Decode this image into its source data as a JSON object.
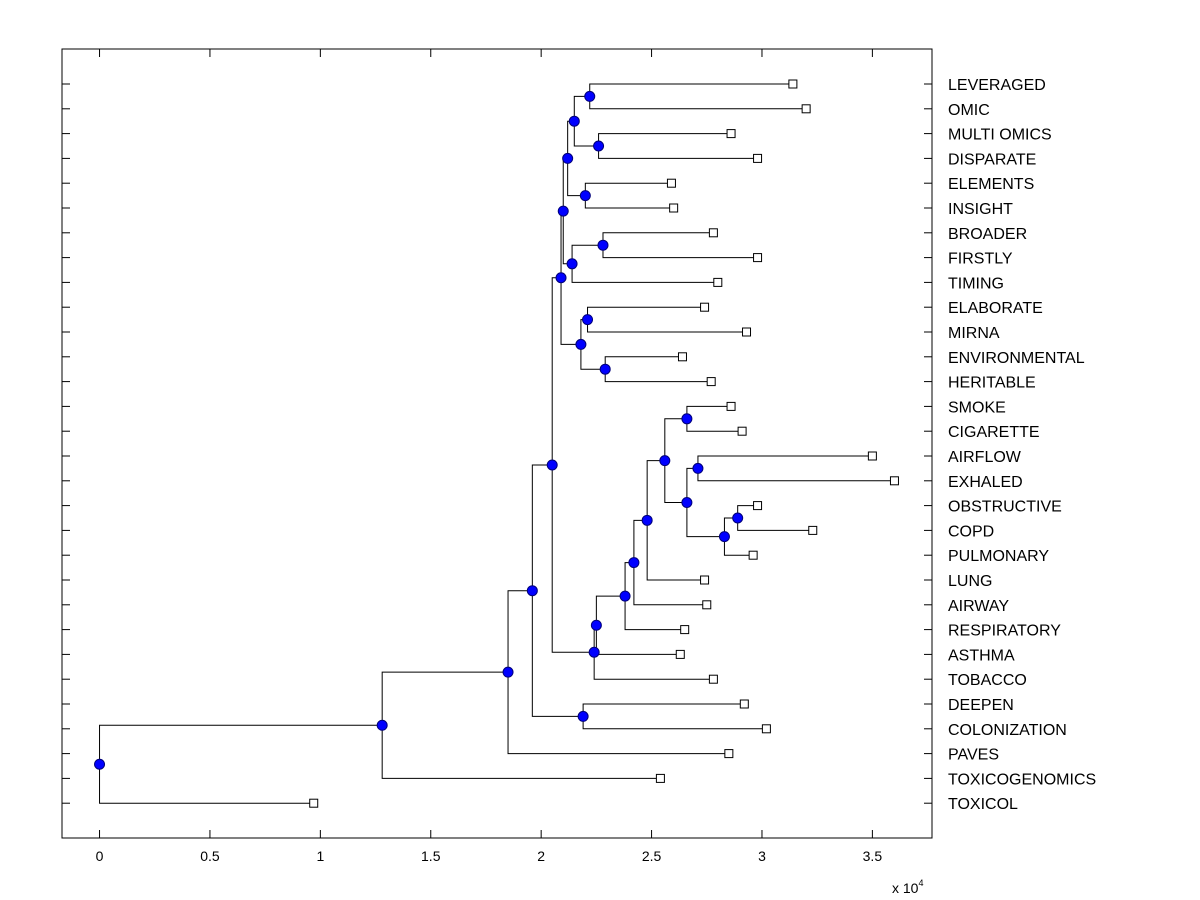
{
  "chart_data": {
    "type": "dendrogram",
    "title": "",
    "xlabel": "",
    "ylabel": "",
    "x_exponent_base": "x 10",
    "x_exponent_power": "4",
    "xlim": [
      -0.17,
      3.77
    ],
    "xticks": [
      0,
      0.5,
      1,
      1.5,
      2,
      2.5,
      3,
      3.5
    ],
    "xtick_labels": [
      "0",
      "0.5",
      "1",
      "1.5",
      "2",
      "2.5",
      "3",
      "3.5"
    ],
    "leaves": [
      {
        "label": "LEVERAGED",
        "x": 3.14
      },
      {
        "label": "OMIC",
        "x": 3.2
      },
      {
        "label": "MULTI OMICS",
        "x": 2.86
      },
      {
        "label": "DISPARATE",
        "x": 2.98
      },
      {
        "label": "ELEMENTS",
        "x": 2.59
      },
      {
        "label": "INSIGHT",
        "x": 2.6
      },
      {
        "label": "BROADER",
        "x": 2.78
      },
      {
        "label": "FIRSTLY",
        "x": 2.98
      },
      {
        "label": "TIMING",
        "x": 2.8
      },
      {
        "label": "ELABORATE",
        "x": 2.74
      },
      {
        "label": "MIRNA",
        "x": 2.93
      },
      {
        "label": "ENVIRONMENTAL",
        "x": 2.64
      },
      {
        "label": "HERITABLE",
        "x": 2.77
      },
      {
        "label": "SMOKE",
        "x": 2.86
      },
      {
        "label": "CIGARETTE",
        "x": 2.91
      },
      {
        "label": "AIRFLOW",
        "x": 3.5
      },
      {
        "label": "EXHALED",
        "x": 3.6
      },
      {
        "label": "OBSTRUCTIVE",
        "x": 2.98
      },
      {
        "label": "COPD",
        "x": 3.23
      },
      {
        "label": "PULMONARY",
        "x": 2.96
      },
      {
        "label": "LUNG",
        "x": 2.74
      },
      {
        "label": "AIRWAY",
        "x": 2.75
      },
      {
        "label": "RESPIRATORY",
        "x": 2.65
      },
      {
        "label": "ASTHMA",
        "x": 2.63
      },
      {
        "label": "TOBACCO",
        "x": 2.78
      },
      {
        "label": "DEEPEN",
        "x": 2.92
      },
      {
        "label": "COLONIZATION",
        "x": 3.02
      },
      {
        "label": "PAVES",
        "x": 2.85
      },
      {
        "label": "TOXICOGENOMICS",
        "x": 2.54
      },
      {
        "label": "TOXICOL",
        "x": 0.97
      }
    ],
    "merges": [
      {
        "x": 2.22,
        "left": "L0",
        "right": "L1"
      },
      {
        "x": 2.26,
        "left": "L2",
        "right": "L3"
      },
      {
        "x": 2.15,
        "left": "N0",
        "right": "N1"
      },
      {
        "x": 2.2,
        "left": "L4",
        "right": "L5"
      },
      {
        "x": 2.12,
        "left": "N2",
        "right": "N3"
      },
      {
        "x": 2.28,
        "left": "L6",
        "right": "L7"
      },
      {
        "x": 2.14,
        "left": "N5",
        "right": "L8"
      },
      {
        "x": 2.1,
        "left": "N4",
        "right": "N6"
      },
      {
        "x": 2.21,
        "left": "L9",
        "right": "L10"
      },
      {
        "x": 2.29,
        "left": "L11",
        "right": "L12"
      },
      {
        "x": 2.18,
        "left": "N8",
        "right": "N9"
      },
      {
        "x": 2.09,
        "left": "N7",
        "right": "N10"
      },
      {
        "x": 2.66,
        "left": "L13",
        "right": "L14"
      },
      {
        "x": 2.71,
        "left": "L15",
        "right": "L16"
      },
      {
        "x": 2.89,
        "left": "L17",
        "right": "L18"
      },
      {
        "x": 2.83,
        "left": "N14",
        "right": "L19"
      },
      {
        "x": 2.66,
        "left": "N13",
        "right": "N15"
      },
      {
        "x": 2.56,
        "left": "N12",
        "right": "N16"
      },
      {
        "x": 2.48,
        "left": "N17",
        "right": "L20"
      },
      {
        "x": 2.42,
        "left": "N18",
        "right": "L21"
      },
      {
        "x": 2.38,
        "left": "N19",
        "right": "L22"
      },
      {
        "x": 2.25,
        "left": "N20",
        "right": "L23"
      },
      {
        "x": 2.24,
        "left": "N21",
        "right": "L24"
      },
      {
        "x": 2.05,
        "left": "N11",
        "right": "N22"
      },
      {
        "x": 2.19,
        "left": "L25",
        "right": "L26"
      },
      {
        "x": 1.96,
        "left": "N23",
        "right": "N24"
      },
      {
        "x": 1.85,
        "left": "N25",
        "right": "L27"
      },
      {
        "x": 1.28,
        "left": "N26",
        "right": "L28"
      },
      {
        "x": 0.0,
        "left": "N27",
        "right": "L29"
      }
    ]
  }
}
